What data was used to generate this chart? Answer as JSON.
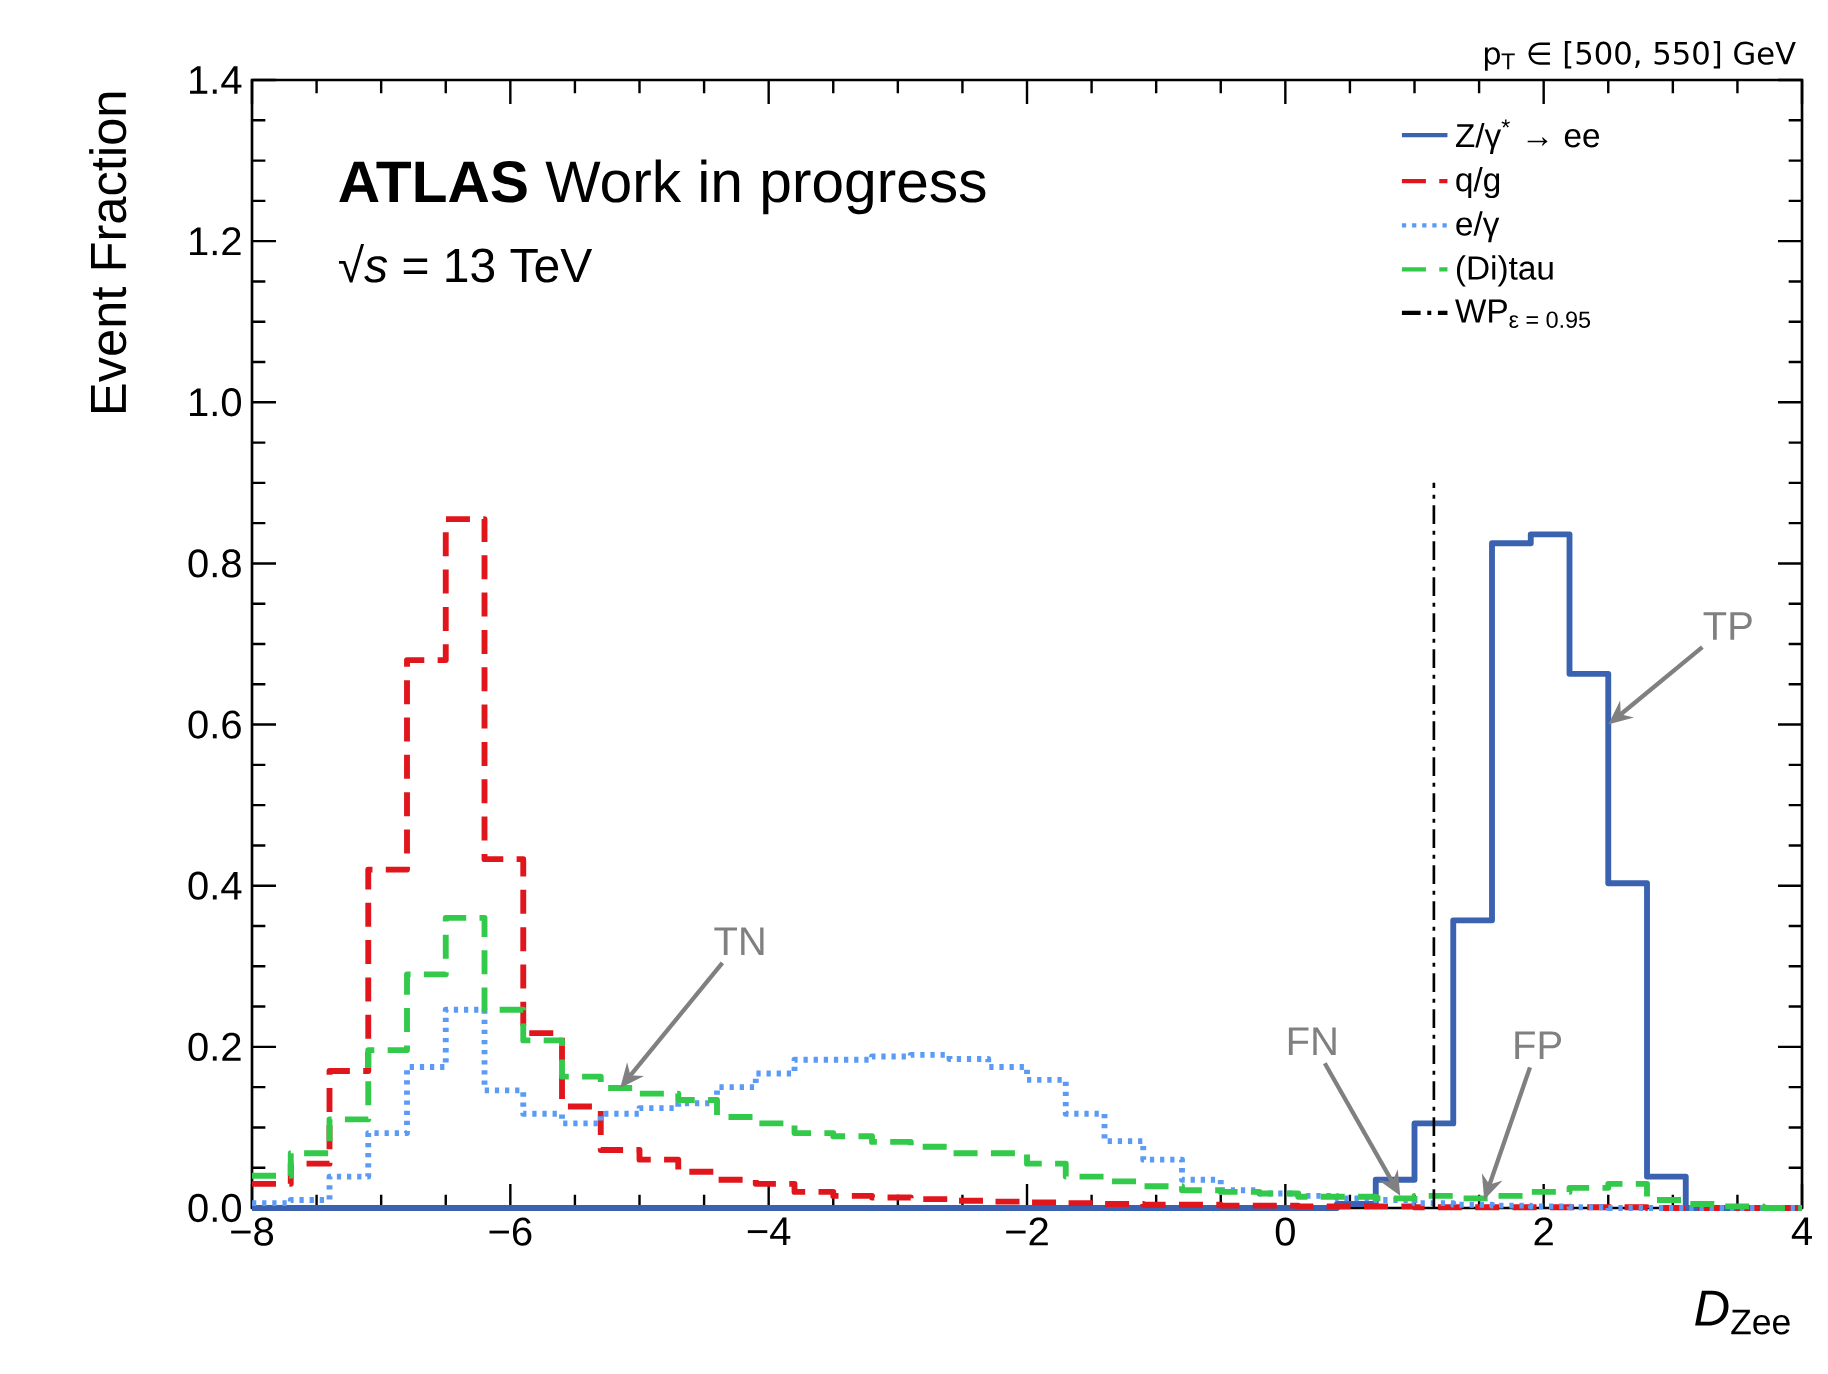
{
  "chart_data": {
    "type": "histogram",
    "title": "**ATLAS** Work in progress",
    "subtitle": "√*s* = 13 TeV",
    "xlabel": "*D*$_{Zee}$",
    "ylabel": "Event Fraction",
    "bins": [
      -8,
      -7.7,
      -7.4,
      -7.1,
      -6.8,
      -6.5,
      -6.2,
      -5.9,
      -5.6,
      -5.3,
      -5,
      -4.7,
      -4.4,
      -4.1,
      -3.8,
      -3.5,
      -3.2,
      -2.9,
      -2.6,
      -2.3,
      -2,
      -1.7,
      -1.4,
      -1.1,
      -0.8,
      -0.5,
      -0.2,
      0.1,
      0.4,
      0.7,
      1,
      1.3,
      1.6,
      1.9,
      2.2,
      2.5,
      2.8,
      3.1,
      3.4,
      3.7,
      4
    ],
    "series": [
      {
        "name": "Z/γ$^{*}$ → ee",
        "color": "#3a62b0",
        "line_style": "solid",
        "values": [
          0,
          0,
          0,
          0,
          0,
          0,
          0,
          0,
          0,
          0,
          0,
          0,
          0,
          0,
          0,
          0,
          0,
          0,
          0,
          0,
          0,
          0,
          0,
          0,
          0,
          0,
          0,
          0,
          0.005,
          0.035,
          0.105,
          0.357,
          0.825,
          0.836,
          0.663,
          0.403,
          0.039,
          0,
          0,
          0
        ]
      },
      {
        "name": "q/g",
        "color": "#e0161c",
        "line_style": "dashed",
        "values": [
          0.03,
          0.055,
          0.17,
          0.42,
          0.68,
          0.855,
          0.433,
          0.217,
          0.126,
          0.072,
          0.06,
          0.045,
          0.035,
          0.03,
          0.02,
          0.015,
          0.013,
          0.011,
          0.009,
          0.008,
          0.007,
          0.006,
          0.005,
          0.004,
          0.004,
          0.003,
          0.003,
          0.002,
          0.002,
          0.002,
          0.001,
          0.001,
          0.001,
          0.001,
          0.001,
          0.001,
          0,
          0,
          0,
          0
        ]
      },
      {
        "name": "e/γ",
        "color": "#5b9bf5",
        "line_style": "dotted",
        "values": [
          0.006,
          0.01,
          0.039,
          0.093,
          0.175,
          0.246,
          0.146,
          0.117,
          0.105,
          0.117,
          0.124,
          0.13,
          0.15,
          0.167,
          0.184,
          0.184,
          0.188,
          0.19,
          0.185,
          0.175,
          0.159,
          0.117,
          0.083,
          0.06,
          0.035,
          0.022,
          0.018,
          0.015,
          0.012,
          0.01,
          0.006,
          0.004,
          0.003,
          0.002,
          0.001,
          0,
          0,
          0,
          0,
          0
        ]
      },
      {
        "name": "(Di)tau",
        "color": "#33c94a",
        "line_style": "dashed",
        "values": [
          0.04,
          0.068,
          0.11,
          0.196,
          0.29,
          0.36,
          0.246,
          0.208,
          0.163,
          0.149,
          0.142,
          0.134,
          0.113,
          0.105,
          0.093,
          0.089,
          0.082,
          0.076,
          0.068,
          0.068,
          0.055,
          0.039,
          0.033,
          0.027,
          0.022,
          0.02,
          0.018,
          0.014,
          0.014,
          0.012,
          0.015,
          0.012,
          0.015,
          0.02,
          0.025,
          0.03,
          0.01,
          0.005,
          0.002,
          0
        ]
      },
      {
        "name": "WP$_{ε = 0.95}$",
        "type": "line",
        "color": "#000000",
        "line_style": "dashdot",
        "x": [
          1.15,
          1.15
        ],
        "values": [
          0,
          0.9
        ]
      }
    ],
    "xlim": [
      -8,
      4
    ],
    "ylim": [
      0,
      1.4
    ],
    "xticks": [
      {
        "value": -8,
        "label": "−8"
      },
      {
        "value": -6,
        "label": "−6"
      },
      {
        "value": -4,
        "label": "−4"
      },
      {
        "value": -2,
        "label": "−2"
      },
      0,
      2,
      4
    ],
    "yticks": [
      {
        "value": 0,
        "label": "0.0"
      },
      0.2,
      0.4,
      0.6,
      0.8,
      {
        "value": 1,
        "label": "1.0"
      },
      1.2,
      1.4
    ],
    "annotations": [
      "p$_{T}$ ∈ [500,  550] GeV",
      {
        "text": "TN",
        "x": -5.15,
        "y": 0.149
      },
      {
        "text": "FN",
        "x": 0.89,
        "y": 0.015
      },
      {
        "text": "FP",
        "x": 1.54,
        "y": 0.01
      },
      {
        "text": "TP",
        "x": 2.5,
        "y": 0.6
      }
    ],
    "legend": "top right"
  }
}
